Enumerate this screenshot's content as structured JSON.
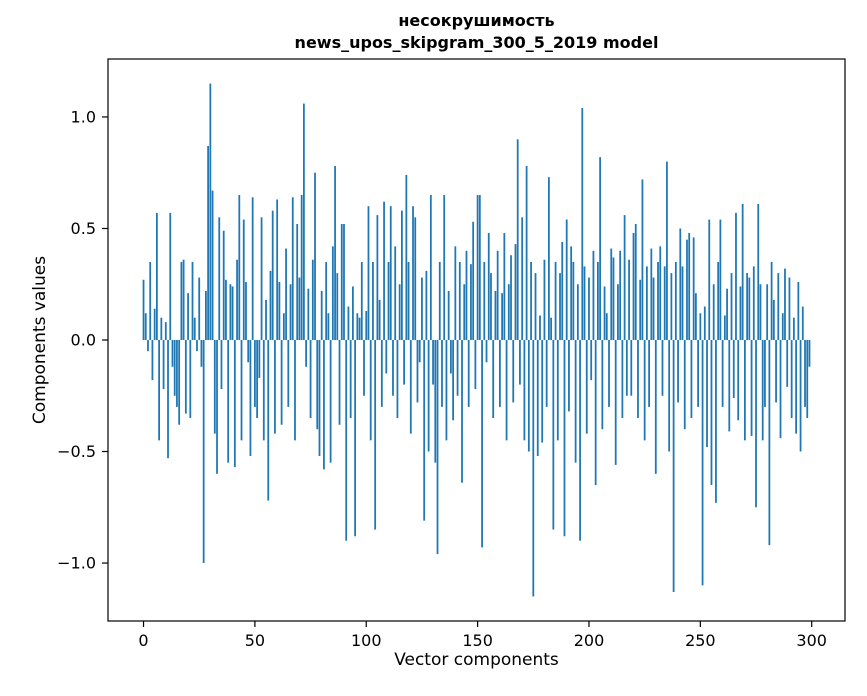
{
  "chart_data": {
    "type": "bar",
    "title": "несокрушимость",
    "subtitle": "news_upos_skipgram_300_5_2019 model",
    "xlabel": "Vector components",
    "ylabel": "Components values",
    "bar_color": "#1f77b4",
    "background_color": "#ffffff",
    "xlim": [
      -15.95,
      314.95
    ],
    "ylim": [
      -1.26,
      1.26
    ],
    "x_ticks": [
      0,
      50,
      100,
      150,
      200,
      250,
      300
    ],
    "y_tick_values": [
      -1.0,
      -0.5,
      0.0,
      0.5,
      1.0
    ],
    "y_tick_labels": [
      "−1.0",
      "−0.5",
      "0.0",
      "0.5",
      "1.0"
    ],
    "grid": false,
    "legend": "none",
    "values": [
      0.27,
      0.12,
      -0.05,
      0.35,
      -0.18,
      0.14,
      0.57,
      -0.45,
      0.1,
      -0.22,
      0.08,
      -0.53,
      0.57,
      -0.12,
      -0.25,
      -0.3,
      -0.38,
      0.35,
      0.36,
      -0.33,
      0.21,
      -0.35,
      0.35,
      0.1,
      -0.05,
      0.28,
      -0.12,
      -1.0,
      0.22,
      0.87,
      1.15,
      0.67,
      -0.42,
      -0.6,
      0.55,
      -0.22,
      0.49,
      0.27,
      -0.55,
      0.25,
      0.24,
      -0.57,
      0.36,
      0.65,
      -0.45,
      0.54,
      0.26,
      -0.1,
      -0.52,
      0.64,
      -0.3,
      -0.35,
      -0.17,
      0.55,
      -0.45,
      0.18,
      -0.72,
      0.31,
      0.58,
      -0.42,
      0.63,
      0.26,
      -0.38,
      0.12,
      0.41,
      -0.3,
      0.25,
      0.64,
      -0.45,
      0.52,
      0.28,
      0.65,
      1.06,
      -0.12,
      0.23,
      -0.35,
      0.36,
      0.75,
      -0.4,
      -0.52,
      0.22,
      -0.58,
      0.35,
      0.12,
      -0.55,
      0.42,
      0.78,
      0.3,
      -0.38,
      0.52,
      0.52,
      -0.9,
      0.15,
      -0.35,
      0.24,
      -0.88,
      0.12,
      0.1,
      0.35,
      -0.25,
      0.13,
      0.6,
      -0.45,
      0.35,
      -0.85,
      0.56,
      0.18,
      -0.3,
      0.62,
      -0.15,
      0.35,
      0.6,
      -0.25,
      0.42,
      -0.35,
      0.25,
      0.58,
      -0.2,
      0.74,
      0.35,
      -0.42,
      0.6,
      0.55,
      -0.28,
      -0.1,
      0.28,
      -0.81,
      0.31,
      -0.5,
      0.65,
      -0.2,
      -0.55,
      -0.96,
      0.35,
      -0.3,
      0.65,
      -0.45,
      0.22,
      -0.15,
      -0.36,
      0.42,
      -0.25,
      0.35,
      -0.64,
      0.25,
      0.4,
      -0.3,
      0.34,
      0.53,
      -0.22,
      0.65,
      0.65,
      -0.93,
      0.35,
      -0.1,
      0.48,
      0.3,
      -0.35,
      0.22,
      0.4,
      -0.3,
      0.21,
      0.48,
      -0.45,
      0.25,
      0.38,
      -0.28,
      0.43,
      0.9,
      -0.2,
      0.55,
      -0.45,
      0.78,
      -0.5,
      0.35,
      -1.15,
      0.3,
      -0.52,
      0.11,
      -0.46,
      0.36,
      -0.3,
      0.73,
      0.1,
      -0.85,
      0.35,
      -0.45,
      0.3,
      0.44,
      -0.88,
      0.54,
      -0.32,
      0.42,
      0.35,
      -0.55,
      0.25,
      -0.9,
      1.04,
      0.33,
      -0.42,
      0.28,
      -0.18,
      0.4,
      -0.65,
      0.35,
      0.82,
      -0.4,
      0.24,
      0.12,
      -0.3,
      0.41,
      0.37,
      -0.56,
      0.25,
      0.4,
      -0.35,
      0.56,
      -0.25,
      0.36,
      -0.25,
      0.48,
      0.52,
      -0.35,
      0.27,
      0.72,
      -0.45,
      0.33,
      -0.3,
      0.41,
      0.28,
      -0.6,
      0.35,
      0.42,
      -0.25,
      0.33,
      0.8,
      -0.5,
      0.3,
      -1.13,
      0.35,
      -0.28,
      0.5,
      0.33,
      -0.4,
      0.45,
      0.48,
      -0.35,
      0.46,
      0.21,
      -0.3,
      0.12,
      -1.1,
      0.15,
      -0.48,
      0.54,
      -0.65,
      0.25,
      -0.73,
      0.35,
      0.54,
      -0.3,
      0.11,
      0.23,
      -0.41,
      0.3,
      -0.26,
      0.57,
      -0.36,
      0.24,
      0.61,
      -0.45,
      0.3,
      0.28,
      -0.43,
      0.33,
      -0.75,
      0.61,
      0.25,
      -0.45,
      -0.3,
      0.25,
      -0.92,
      0.35,
      0.18,
      -0.28,
      0.3,
      -0.44,
      0.12,
      0.32,
      -0.21,
      0.28,
      -0.35,
      0.1,
      -0.42,
      0.26,
      -0.5,
      0.15,
      -0.3,
      -0.35,
      -0.12
    ]
  }
}
